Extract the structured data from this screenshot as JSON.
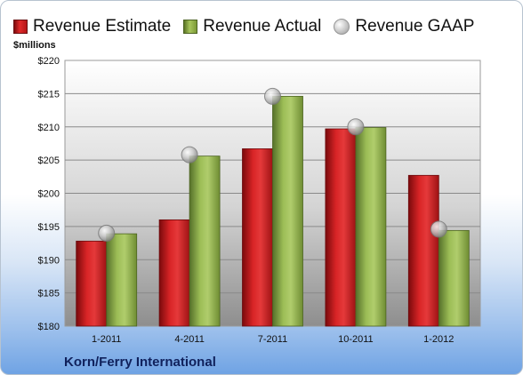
{
  "legend": {
    "estimate": "Revenue Estimate",
    "actual": "Revenue Actual",
    "gaap": "Revenue GAAP"
  },
  "units_label": "$millions",
  "company": "Korn/Ferry International",
  "colors": {
    "estimate": "#c41e20",
    "actual": "#8fae48",
    "gaap": "#b9b9b9",
    "plot_top": "#ffffff",
    "plot_bottom": "#8f8f8f"
  },
  "chart_data": {
    "type": "bar",
    "categories": [
      "1-2011",
      "4-2011",
      "7-2011",
      "10-2011",
      "1-2012"
    ],
    "series": [
      {
        "name": "Revenue Estimate",
        "kind": "bar",
        "values": [
          192.8,
          196.0,
          206.7,
          209.7,
          202.7
        ]
      },
      {
        "name": "Revenue Actual",
        "kind": "bar",
        "values": [
          193.9,
          205.6,
          214.6,
          209.9,
          194.4
        ]
      },
      {
        "name": "Revenue GAAP",
        "kind": "marker",
        "values": [
          194.0,
          205.8,
          214.6,
          210.0,
          194.6
        ]
      }
    ],
    "ylabel": "$millions",
    "ylim": [
      180,
      220
    ],
    "yticks": [
      180,
      185,
      190,
      195,
      200,
      205,
      210,
      215,
      220
    ],
    "ytick_labels": [
      "$180",
      "$185",
      "$190",
      "$195",
      "$200",
      "$205",
      "$210",
      "$215",
      "$220"
    ],
    "grid": true,
    "legend_position": "top"
  }
}
